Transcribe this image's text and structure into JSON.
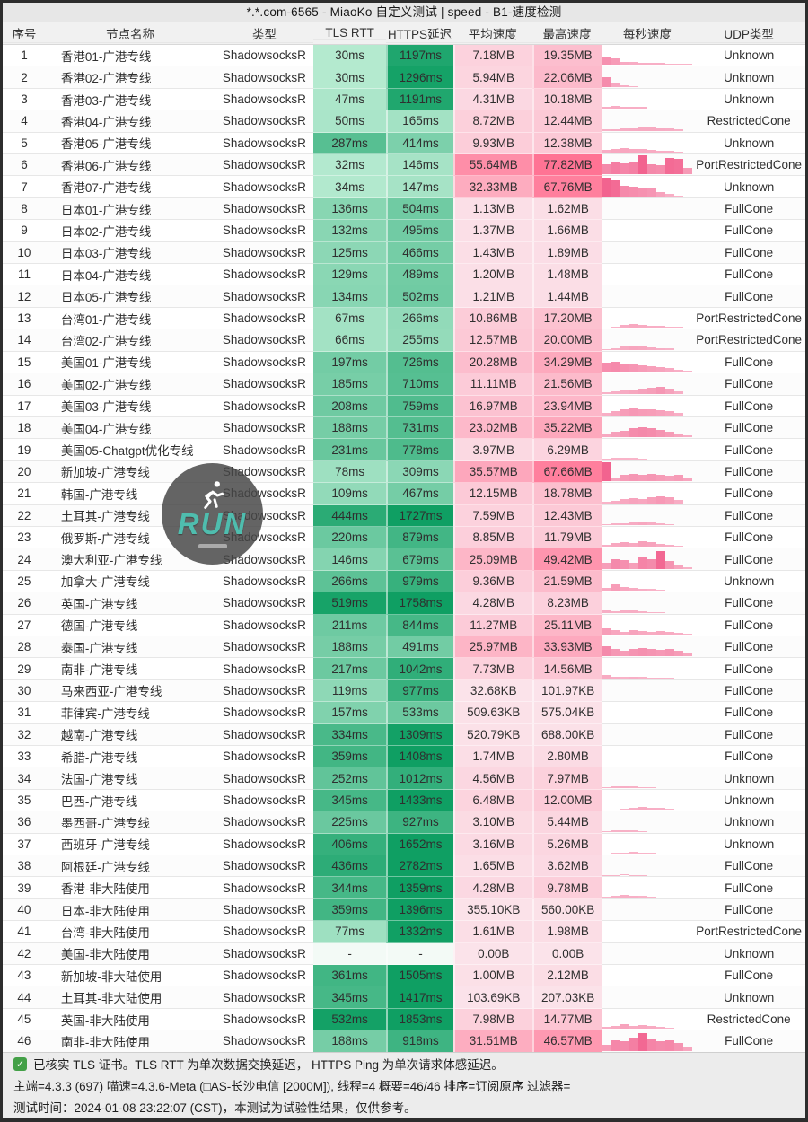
{
  "title": "*.*.com-6565 - MiaoKo 自定义测试 | speed - B1-速度检测",
  "columns": [
    "序号",
    "节点名称",
    "类型",
    "TLS RTT",
    "HTTPS延迟",
    "平均速度",
    "最高速度",
    "每秒速度",
    "UDP类型"
  ],
  "rows": [
    {
      "no": "1",
      "name": "香港01-广港专线",
      "type": "ShadowsocksR",
      "tls": "30ms",
      "https": "1197ms",
      "avg": "7.18MB",
      "max": "19.35MB",
      "udp": "Unknown",
      "spark": [
        0.45,
        0.35,
        0.18,
        0.14,
        0.12,
        0.1,
        0.1,
        0.08,
        0.06,
        0.05
      ]
    },
    {
      "no": "2",
      "name": "香港02-广港专线",
      "type": "ShadowsocksR",
      "tls": "30ms",
      "https": "1296ms",
      "avg": "5.94MB",
      "max": "22.06MB",
      "udp": "Unknown",
      "spark": [
        0.5,
        0.18,
        0.1,
        0.05,
        0,
        0,
        0,
        0,
        0,
        0
      ]
    },
    {
      "no": "3",
      "name": "香港03-广港专线",
      "type": "ShadowsocksR",
      "tls": "47ms",
      "https": "1191ms",
      "avg": "4.31MB",
      "max": "10.18MB",
      "udp": "Unknown",
      "spark": [
        0.12,
        0.14,
        0.13,
        0.12,
        0.1,
        0,
        0,
        0,
        0,
        0
      ]
    },
    {
      "no": "4",
      "name": "香港04-广港专线",
      "type": "ShadowsocksR",
      "tls": "50ms",
      "https": "165ms",
      "avg": "8.72MB",
      "max": "12.44MB",
      "udp": "RestrictedCone",
      "spark": [
        0.06,
        0.1,
        0.12,
        0.14,
        0.16,
        0.16,
        0.14,
        0.12,
        0.08,
        0
      ]
    },
    {
      "no": "5",
      "name": "香港05-广港专线",
      "type": "ShadowsocksR",
      "tls": "287ms",
      "https": "414ms",
      "avg": "9.93MB",
      "max": "12.38MB",
      "udp": "Unknown",
      "spark": [
        0.14,
        0.2,
        0.22,
        0.2,
        0.18,
        0.16,
        0.12,
        0.1,
        0.06,
        0
      ]
    },
    {
      "no": "6",
      "name": "香港06-广港专线",
      "type": "ShadowsocksR",
      "tls": "32ms",
      "https": "146ms",
      "avg": "55.64MB",
      "max": "77.82MB",
      "udp": "PortRestrictedCone",
      "spark": [
        0.55,
        0.7,
        0.6,
        0.65,
        1,
        0.55,
        0.5,
        0.9,
        0.85,
        0.35
      ]
    },
    {
      "no": "7",
      "name": "香港07-广港专线",
      "type": "ShadowsocksR",
      "tls": "34ms",
      "https": "147ms",
      "avg": "32.33MB",
      "max": "67.76MB",
      "udp": "Unknown",
      "spark": [
        1,
        0.9,
        0.55,
        0.5,
        0.45,
        0.4,
        0.25,
        0.12,
        0.06,
        0
      ]
    },
    {
      "no": "8",
      "name": "日本01-广港专线",
      "type": "ShadowsocksR",
      "tls": "136ms",
      "https": "504ms",
      "avg": "1.13MB",
      "max": "1.62MB",
      "udp": "FullCone",
      "spark": []
    },
    {
      "no": "9",
      "name": "日本02-广港专线",
      "type": "ShadowsocksR",
      "tls": "132ms",
      "https": "495ms",
      "avg": "1.37MB",
      "max": "1.66MB",
      "udp": "FullCone",
      "spark": []
    },
    {
      "no": "10",
      "name": "日本03-广港专线",
      "type": "ShadowsocksR",
      "tls": "125ms",
      "https": "466ms",
      "avg": "1.43MB",
      "max": "1.89MB",
      "udp": "FullCone",
      "spark": []
    },
    {
      "no": "11",
      "name": "日本04-广港专线",
      "type": "ShadowsocksR",
      "tls": "129ms",
      "https": "489ms",
      "avg": "1.20MB",
      "max": "1.48MB",
      "udp": "FullCone",
      "spark": []
    },
    {
      "no": "12",
      "name": "日本05-广港专线",
      "type": "ShadowsocksR",
      "tls": "134ms",
      "https": "502ms",
      "avg": "1.21MB",
      "max": "1.44MB",
      "udp": "FullCone",
      "spark": []
    },
    {
      "no": "13",
      "name": "台湾01-广港专线",
      "type": "ShadowsocksR",
      "tls": "67ms",
      "https": "266ms",
      "avg": "10.86MB",
      "max": "17.20MB",
      "udp": "PortRestrictedCone",
      "spark": [
        0,
        0.06,
        0.14,
        0.2,
        0.16,
        0.12,
        0.1,
        0.08,
        0.05,
        0
      ]
    },
    {
      "no": "14",
      "name": "台湾02-广港专线",
      "type": "ShadowsocksR",
      "tls": "66ms",
      "https": "255ms",
      "avg": "12.57MB",
      "max": "20.00MB",
      "udp": "PortRestrictedCone",
      "spark": [
        0.04,
        0.08,
        0.16,
        0.22,
        0.2,
        0.14,
        0.1,
        0.06,
        0,
        0
      ]
    },
    {
      "no": "15",
      "name": "美国01-广港专线",
      "type": "ShadowsocksR",
      "tls": "197ms",
      "https": "726ms",
      "avg": "20.28MB",
      "max": "34.29MB",
      "udp": "FullCone",
      "spark": [
        0.5,
        0.55,
        0.45,
        0.4,
        0.35,
        0.3,
        0.25,
        0.18,
        0.12,
        0.06
      ]
    },
    {
      "no": "16",
      "name": "美国02-广港专线",
      "type": "ShadowsocksR",
      "tls": "185ms",
      "https": "710ms",
      "avg": "11.11MB",
      "max": "21.56MB",
      "udp": "FullCone",
      "spark": [
        0.05,
        0.1,
        0.15,
        0.2,
        0.25,
        0.3,
        0.38,
        0.25,
        0.1,
        0
      ]
    },
    {
      "no": "17",
      "name": "美国03-广港专线",
      "type": "ShadowsocksR",
      "tls": "208ms",
      "https": "759ms",
      "avg": "16.97MB",
      "max": "23.94MB",
      "udp": "FullCone",
      "spark": [
        0.12,
        0.22,
        0.32,
        0.38,
        0.34,
        0.32,
        0.28,
        0.22,
        0.12,
        0
      ]
    },
    {
      "no": "18",
      "name": "美国04-广港专线",
      "type": "ShadowsocksR",
      "tls": "188ms",
      "https": "731ms",
      "avg": "23.02MB",
      "max": "35.22MB",
      "udp": "FullCone",
      "spark": [
        0.18,
        0.28,
        0.35,
        0.5,
        0.55,
        0.5,
        0.42,
        0.32,
        0.22,
        0.1
      ]
    },
    {
      "no": "19",
      "name": "美国05-Chatgpt优化专线",
      "type": "ShadowsocksR",
      "tls": "231ms",
      "https": "778ms",
      "avg": "3.97MB",
      "max": "6.29MB",
      "udp": "FullCone",
      "spark": [
        0.05,
        0.08,
        0.08,
        0.06,
        0.04,
        0,
        0,
        0,
        0,
        0
      ]
    },
    {
      "no": "20",
      "name": "新加坡-广港专线",
      "type": "ShadowsocksR",
      "tls": "78ms",
      "https": "309ms",
      "avg": "35.57MB",
      "max": "67.66MB",
      "udp": "FullCone",
      "spark": [
        1,
        0.22,
        0.32,
        0.38,
        0.34,
        0.38,
        0.32,
        0.28,
        0.32,
        0.22
      ]
    },
    {
      "no": "21",
      "name": "韩国-广港专线",
      "type": "ShadowsocksR",
      "tls": "109ms",
      "https": "467ms",
      "avg": "12.15MB",
      "max": "18.78MB",
      "udp": "FullCone",
      "spark": [
        0.08,
        0.14,
        0.2,
        0.26,
        0.22,
        0.3,
        0.36,
        0.3,
        0.15,
        0
      ]
    },
    {
      "no": "22",
      "name": "土耳其-广港专线",
      "type": "ShadowsocksR",
      "tls": "444ms",
      "https": "1727ms",
      "avg": "7.59MB",
      "max": "12.43MB",
      "udp": "FullCone",
      "spark": [
        0.04,
        0.08,
        0.1,
        0.14,
        0.2,
        0.12,
        0.08,
        0.05,
        0,
        0
      ]
    },
    {
      "no": "23",
      "name": "俄罗斯-广港专线",
      "type": "ShadowsocksR",
      "tls": "220ms",
      "https": "879ms",
      "avg": "8.85MB",
      "max": "11.79MB",
      "udp": "FullCone",
      "spark": [
        0.1,
        0.2,
        0.26,
        0.2,
        0.3,
        0.26,
        0.16,
        0.1,
        0.05,
        0
      ]
    },
    {
      "no": "24",
      "name": "澳大利亚-广港专线",
      "type": "ShadowsocksR",
      "tls": "146ms",
      "https": "679ms",
      "avg": "25.09MB",
      "max": "49.42MB",
      "udp": "FullCone",
      "spark": [
        0.3,
        0.52,
        0.46,
        0.3,
        0.62,
        0.52,
        0.95,
        0.42,
        0.22,
        0.08
      ]
    },
    {
      "no": "25",
      "name": "加拿大-广港专线",
      "type": "ShadowsocksR",
      "tls": "266ms",
      "https": "979ms",
      "avg": "9.36MB",
      "max": "21.59MB",
      "udp": "Unknown",
      "spark": [
        0.16,
        0.32,
        0.22,
        0.16,
        0.12,
        0.08,
        0.05,
        0,
        0,
        0
      ]
    },
    {
      "no": "26",
      "name": "英国-广港专线",
      "type": "ShadowsocksR",
      "tls": "519ms",
      "https": "1758ms",
      "avg": "4.28MB",
      "max": "8.23MB",
      "udp": "FullCone",
      "spark": [
        0.1,
        0.08,
        0.1,
        0.12,
        0.08,
        0.05,
        0.04,
        0,
        0,
        0
      ]
    },
    {
      "no": "27",
      "name": "德国-广港专线",
      "type": "ShadowsocksR",
      "tls": "211ms",
      "https": "844ms",
      "avg": "11.27MB",
      "max": "25.11MB",
      "udp": "FullCone",
      "spark": [
        0.32,
        0.22,
        0.16,
        0.26,
        0.2,
        0.16,
        0.2,
        0.16,
        0.1,
        0.05
      ]
    },
    {
      "no": "28",
      "name": "泰国-广港专线",
      "type": "ShadowsocksR",
      "tls": "188ms",
      "https": "491ms",
      "avg": "25.97MB",
      "max": "33.93MB",
      "udp": "FullCone",
      "spark": [
        0.52,
        0.38,
        0.32,
        0.42,
        0.46,
        0.42,
        0.36,
        0.42,
        0.32,
        0.2
      ]
    },
    {
      "no": "29",
      "name": "南非-广港专线",
      "type": "ShadowsocksR",
      "tls": "217ms",
      "https": "1042ms",
      "avg": "7.73MB",
      "max": "14.56MB",
      "udp": "FullCone",
      "spark": [
        0.16,
        0.1,
        0.08,
        0.1,
        0.08,
        0.06,
        0.05,
        0.04,
        0,
        0
      ]
    },
    {
      "no": "30",
      "name": "马来西亚-广港专线",
      "type": "ShadowsocksR",
      "tls": "119ms",
      "https": "977ms",
      "avg": "32.68KB",
      "max": "101.97KB",
      "udp": "FullCone",
      "spark": []
    },
    {
      "no": "31",
      "name": "菲律宾-广港专线",
      "type": "ShadowsocksR",
      "tls": "157ms",
      "https": "533ms",
      "avg": "509.63KB",
      "max": "575.04KB",
      "udp": "FullCone",
      "spark": []
    },
    {
      "no": "32",
      "name": "越南-广港专线",
      "type": "ShadowsocksR",
      "tls": "334ms",
      "https": "1309ms",
      "avg": "520.79KB",
      "max": "688.00KB",
      "udp": "FullCone",
      "spark": []
    },
    {
      "no": "33",
      "name": "希腊-广港专线",
      "type": "ShadowsocksR",
      "tls": "359ms",
      "https": "1408ms",
      "avg": "1.74MB",
      "max": "2.80MB",
      "udp": "FullCone",
      "spark": []
    },
    {
      "no": "34",
      "name": "法国-广港专线",
      "type": "ShadowsocksR",
      "tls": "252ms",
      "https": "1012ms",
      "avg": "4.56MB",
      "max": "7.97MB",
      "udp": "Unknown",
      "spark": [
        0.05,
        0.08,
        0.1,
        0.08,
        0.06,
        0.04,
        0,
        0,
        0,
        0
      ]
    },
    {
      "no": "35",
      "name": "巴西-广港专线",
      "type": "ShadowsocksR",
      "tls": "345ms",
      "https": "1433ms",
      "avg": "6.48MB",
      "max": "12.00MB",
      "udp": "Unknown",
      "spark": [
        0,
        0,
        0.05,
        0.1,
        0.16,
        0.12,
        0.1,
        0.06,
        0,
        0
      ]
    },
    {
      "no": "36",
      "name": "墨西哥-广港专线",
      "type": "ShadowsocksR",
      "tls": "225ms",
      "https": "927ms",
      "avg": "3.10MB",
      "max": "5.44MB",
      "udp": "Unknown",
      "spark": [
        0.04,
        0.06,
        0.08,
        0.06,
        0.05,
        0,
        0,
        0,
        0,
        0
      ]
    },
    {
      "no": "37",
      "name": "西班牙-广港专线",
      "type": "ShadowsocksR",
      "tls": "406ms",
      "https": "1652ms",
      "avg": "3.16MB",
      "max": "5.26MB",
      "udp": "Unknown",
      "spark": [
        0,
        0.04,
        0.06,
        0.08,
        0.06,
        0.04,
        0,
        0,
        0,
        0
      ]
    },
    {
      "no": "38",
      "name": "阿根廷-广港专线",
      "type": "ShadowsocksR",
      "tls": "436ms",
      "https": "2782ms",
      "avg": "1.65MB",
      "max": "3.62MB",
      "udp": "FullCone",
      "spark": [
        0.03,
        0.04,
        0.05,
        0.04,
        0.03,
        0,
        0,
        0,
        0,
        0
      ]
    },
    {
      "no": "39",
      "name": "香港-非大陆使用",
      "type": "ShadowsocksR",
      "tls": "344ms",
      "https": "1359ms",
      "avg": "4.28MB",
      "max": "9.78MB",
      "udp": "FullCone",
      "spark": [
        0.04,
        0.09,
        0.12,
        0.1,
        0.07,
        0.05,
        0,
        0,
        0,
        0
      ]
    },
    {
      "no": "40",
      "name": "日本-非大陆使用",
      "type": "ShadowsocksR",
      "tls": "359ms",
      "https": "1396ms",
      "avg": "355.10KB",
      "max": "560.00KB",
      "udp": "FullCone",
      "spark": []
    },
    {
      "no": "41",
      "name": "台湾-非大陆使用",
      "type": "ShadowsocksR",
      "tls": "77ms",
      "https": "1332ms",
      "avg": "1.61MB",
      "max": "1.98MB",
      "udp": "PortRestrictedCone",
      "spark": []
    },
    {
      "no": "42",
      "name": "美国-非大陆使用",
      "type": "ShadowsocksR",
      "tls": "-",
      "https": "-",
      "avg": "0.00B",
      "max": "0.00B",
      "udp": "Unknown",
      "spark": []
    },
    {
      "no": "43",
      "name": "新加坡-非大陆使用",
      "type": "ShadowsocksR",
      "tls": "361ms",
      "https": "1505ms",
      "avg": "1.00MB",
      "max": "2.12MB",
      "udp": "FullCone",
      "spark": []
    },
    {
      "no": "44",
      "name": "土耳其-非大陆使用",
      "type": "ShadowsocksR",
      "tls": "345ms",
      "https": "1417ms",
      "avg": "103.69KB",
      "max": "207.03KB",
      "udp": "Unknown",
      "spark": []
    },
    {
      "no": "45",
      "name": "英国-非大陆使用",
      "type": "ShadowsocksR",
      "tls": "532ms",
      "https": "1853ms",
      "avg": "7.98MB",
      "max": "14.77MB",
      "udp": "RestrictedCone",
      "spark": [
        0.1,
        0.16,
        0.26,
        0.16,
        0.2,
        0.16,
        0.1,
        0.06,
        0,
        0
      ]
    },
    {
      "no": "46",
      "name": "南非-非大陆使用",
      "type": "ShadowsocksR",
      "tls": "188ms",
      "https": "918ms",
      "avg": "31.51MB",
      "max": "46.57MB",
      "udp": "FullCone",
      "spark": [
        0.32,
        0.58,
        0.52,
        0.68,
        0.95,
        0.62,
        0.52,
        0.58,
        0.42,
        0.22
      ]
    }
  ],
  "footer": {
    "check_symbol": "✓",
    "note": "已核实 TLS 证书。TLS RTT 为单次数据交换延迟， HTTPS Ping 为单次请求体感延迟。",
    "meta": "主端=4.3.3 (697) 喵速=4.3.6-Meta (□AS-长沙电信 [2000M]), 线程=4 概要=46/46 排序=订阅原序 过滤器=",
    "time": "测试时间：2024-01-08 23:22:07 (CST)，本测试为试验性结果，仅供参考。"
  },
  "watermark": {
    "label": "RUN"
  },
  "colors": {
    "green_light": "#c9f3dd",
    "green_dark": "#0f9f63",
    "green_empty": "#f3faf6",
    "pink_light": "#fbe3ea",
    "pink_strong": "#ff7394",
    "bar_pink": "#f2638f",
    "check_green": "#43a047",
    "run_teal": "#4fbdae"
  }
}
